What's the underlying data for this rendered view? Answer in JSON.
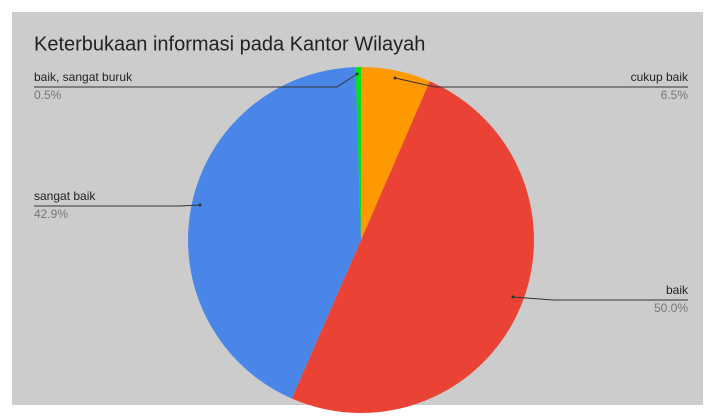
{
  "chart_data": {
    "type": "pie",
    "title": "Keterbukaan informasi  pada Kantor Wilayah",
    "categories": [
      "cukup baik",
      "baik",
      "sangat baik",
      "baik, sangat buruk"
    ],
    "values": [
      6.5,
      50.0,
      42.9,
      0.5
    ],
    "value_labels": [
      "6.5%",
      "50.0%",
      "42.9%",
      "0.5%"
    ],
    "colors": [
      "#ff9900",
      "#ea4335",
      "#4a86e8",
      "#00e01a"
    ]
  }
}
